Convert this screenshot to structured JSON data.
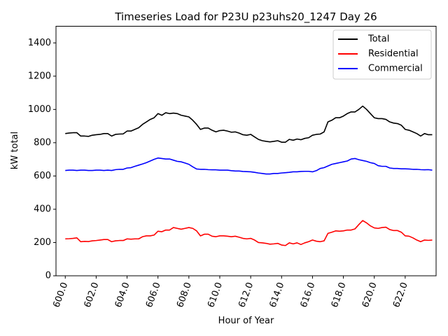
{
  "chart_data": {
    "type": "line",
    "title": "Timeseries Load for P23U p23uhs20_1247  Day 26",
    "xlabel": "Hour of Year",
    "ylabel": "kW total",
    "xlim": [
      599.4,
      624.0
    ],
    "ylim": [
      0,
      1500
    ],
    "xticks": [
      600.0,
      602.0,
      604.0,
      606.0,
      608.0,
      610.0,
      612.0,
      614.0,
      616.0,
      618.0,
      620.0,
      622.0
    ],
    "xtick_labels": [
      "600.0",
      "602.0",
      "604.0",
      "606.0",
      "608.0",
      "610.0",
      "612.0",
      "614.0",
      "616.0",
      "618.0",
      "620.0",
      "622.0"
    ],
    "yticks": [
      0,
      200,
      400,
      600,
      800,
      1000,
      1200,
      1400
    ],
    "ytick_labels": [
      "0",
      "200",
      "400",
      "600",
      "800",
      "1000",
      "1200",
      "1400"
    ],
    "legend_position": "top-right",
    "x": [
      600.0,
      600.25,
      600.5,
      600.75,
      601.0,
      601.25,
      601.5,
      601.75,
      602.0,
      602.25,
      602.5,
      602.75,
      603.0,
      603.25,
      603.5,
      603.75,
      604.0,
      604.25,
      604.5,
      604.75,
      605.0,
      605.25,
      605.5,
      605.75,
      606.0,
      606.25,
      606.5,
      606.75,
      607.0,
      607.25,
      607.5,
      607.75,
      608.0,
      608.25,
      608.5,
      608.75,
      609.0,
      609.25,
      609.5,
      609.75,
      610.0,
      610.25,
      610.5,
      610.75,
      611.0,
      611.25,
      611.5,
      611.75,
      612.0,
      612.25,
      612.5,
      612.75,
      613.0,
      613.25,
      613.5,
      613.75,
      614.0,
      614.25,
      614.5,
      614.75,
      615.0,
      615.25,
      615.5,
      615.75,
      616.0,
      616.25,
      616.5,
      616.75,
      617.0,
      617.25,
      617.5,
      617.75,
      618.0,
      618.25,
      618.5,
      618.75,
      619.0,
      619.25,
      619.5,
      619.75,
      620.0,
      620.25,
      620.5,
      620.75,
      621.0,
      621.25,
      621.5,
      621.75,
      622.0,
      622.25,
      622.5,
      622.75,
      623.0,
      623.25,
      623.5,
      623.75
    ],
    "series": [
      {
        "name": "Total",
        "color": "#000000",
        "values": [
          855,
          858,
          860,
          860,
          840,
          840,
          838,
          845,
          848,
          850,
          855,
          855,
          840,
          850,
          852,
          853,
          870,
          870,
          880,
          890,
          910,
          925,
          940,
          950,
          975,
          965,
          980,
          975,
          978,
          975,
          965,
          960,
          955,
          935,
          910,
          880,
          888,
          888,
          875,
          865,
          873,
          875,
          870,
          863,
          865,
          858,
          848,
          845,
          850,
          835,
          820,
          812,
          808,
          805,
          808,
          812,
          803,
          803,
          820,
          815,
          822,
          818,
          826,
          830,
          845,
          850,
          852,
          865,
          925,
          935,
          950,
          950,
          960,
          975,
          985,
          985,
          1000,
          1020,
          1000,
          975,
          950,
          945,
          945,
          940,
          925,
          918,
          915,
          905,
          880,
          875,
          865,
          855,
          840,
          855,
          848,
          848
        ]
      },
      {
        "name": "Residential",
        "color": "#ff0000",
        "values": [
          222,
          223,
          225,
          228,
          205,
          207,
          206,
          210,
          212,
          215,
          218,
          218,
          205,
          210,
          212,
          212,
          222,
          220,
          222,
          222,
          235,
          240,
          240,
          245,
          268,
          265,
          275,
          275,
          290,
          285,
          280,
          285,
          290,
          285,
          270,
          240,
          250,
          250,
          238,
          235,
          240,
          240,
          238,
          235,
          238,
          232,
          225,
          222,
          225,
          215,
          200,
          198,
          195,
          190,
          192,
          195,
          185,
          182,
          198,
          192,
          198,
          188,
          198,
          205,
          215,
          208,
          205,
          210,
          255,
          262,
          270,
          268,
          270,
          275,
          275,
          282,
          308,
          332,
          318,
          300,
          288,
          285,
          290,
          292,
          278,
          272,
          272,
          262,
          240,
          238,
          228,
          215,
          205,
          215,
          213,
          215
        ]
      },
      {
        "name": "Commercial",
        "color": "#0000ff",
        "values": [
          633,
          635,
          635,
          633,
          635,
          635,
          633,
          633,
          635,
          635,
          633,
          635,
          633,
          638,
          640,
          640,
          648,
          650,
          658,
          665,
          672,
          680,
          690,
          700,
          708,
          705,
          702,
          702,
          695,
          688,
          685,
          678,
          670,
          655,
          642,
          640,
          640,
          638,
          637,
          637,
          635,
          635,
          635,
          632,
          630,
          630,
          627,
          626,
          625,
          622,
          618,
          615,
          612,
          612,
          615,
          615,
          618,
          620,
          622,
          625,
          625,
          627,
          628,
          628,
          625,
          632,
          645,
          650,
          660,
          670,
          675,
          680,
          685,
          690,
          702,
          705,
          698,
          693,
          688,
          680,
          675,
          662,
          658,
          658,
          648,
          645,
          645,
          643,
          643,
          642,
          640,
          640,
          638,
          637,
          638,
          635
        ]
      }
    ]
  }
}
